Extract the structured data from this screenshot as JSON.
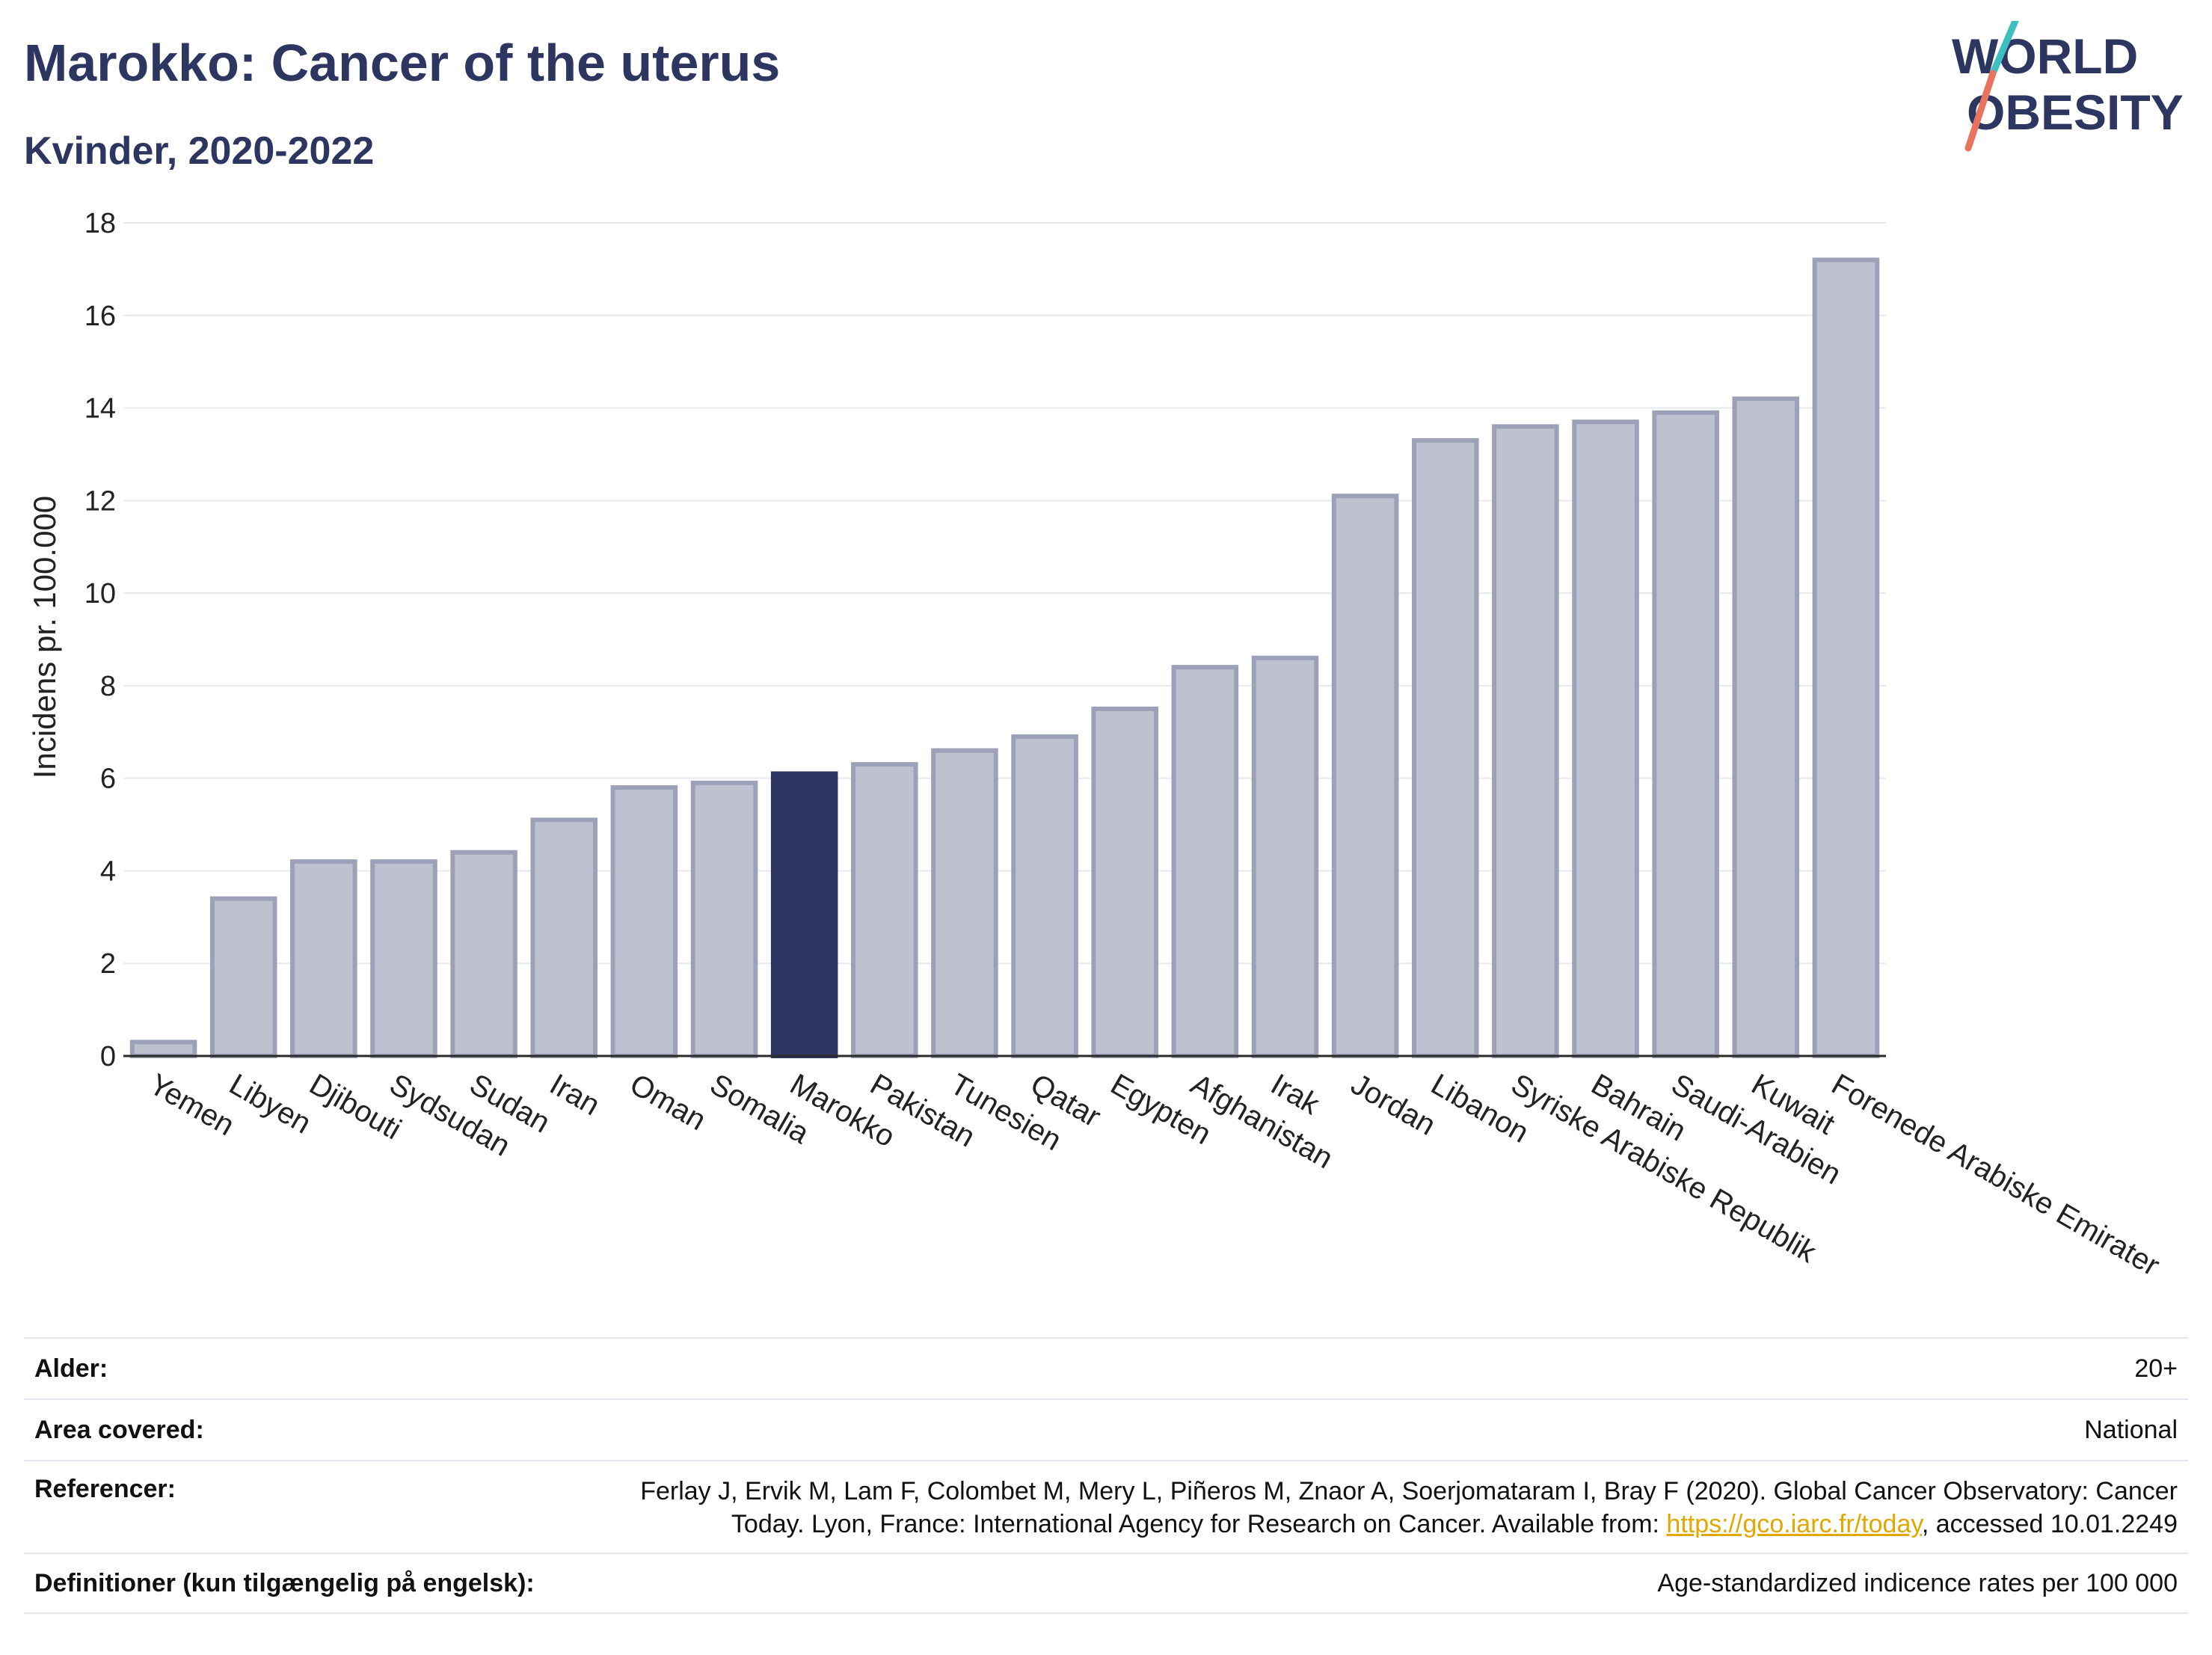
{
  "header": {
    "title": "Marokko: Cancer of the uterus",
    "subtitle": "Kvinder, 2020-2022",
    "logo_line1": "WORLD",
    "logo_line2": "OBESITY"
  },
  "chart_data": {
    "type": "bar",
    "title": "Marokko: Cancer of the uterus",
    "subtitle": "Kvinder, 2020-2022",
    "xlabel": "",
    "ylabel": "Incidens pr. 100.000",
    "ylim": [
      0,
      18
    ],
    "yticks": [
      0,
      2,
      4,
      6,
      8,
      10,
      12,
      14,
      16,
      18
    ],
    "grid": true,
    "categories": [
      "Yemen",
      "Libyen",
      "Djibouti",
      "Sydsudan",
      "Sudan",
      "Iran",
      "Oman",
      "Somalia",
      "Marokko",
      "Pakistan",
      "Tunesien",
      "Qatar",
      "Egypten",
      "Afghanistan",
      "Irak",
      "Jordan",
      "Libanon",
      "Syriske Arabiske Republik",
      "Bahrain",
      "Saudi-Arabien",
      "Kuwait",
      "Forenede Arabiske Emirater"
    ],
    "values": [
      0.3,
      3.4,
      4.2,
      4.2,
      4.4,
      5.1,
      5.8,
      5.9,
      6.1,
      6.3,
      6.6,
      6.9,
      7.5,
      8.4,
      8.6,
      12.1,
      13.3,
      13.6,
      13.7,
      13.9,
      14.2,
      17.2
    ],
    "highlight": "Marokko",
    "colors": {
      "default_fill": "#bec1cf",
      "default_stroke": "#9ca1b7",
      "highlight": "#2d3561"
    }
  },
  "info": {
    "rows": [
      {
        "label": "Alder:",
        "value": "20+"
      },
      {
        "label": "Area covered:",
        "value": "National"
      },
      {
        "label": "Referencer:",
        "value_pre": "Ferlay J, Ervik M, Lam F, Colombet M, Mery L, Piñeros M, Znaor A, Soerjomataram I, Bray F (2020). Global Cancer Observatory: Cancer Today. Lyon, France: International Agency for Research on Cancer. Available from: ",
        "link": "https://gco.iarc.fr/today",
        "value_post": ", accessed 10.01.2249"
      },
      {
        "label": "Definitioner (kun tilgængelig på engelsk):",
        "value": "Age-standardized indicence rates per 100 000"
      }
    ]
  },
  "colors": {
    "title": "#2d3561",
    "logo_accent_teal": "#3bbfbf",
    "logo_accent_coral": "#e8735f"
  }
}
